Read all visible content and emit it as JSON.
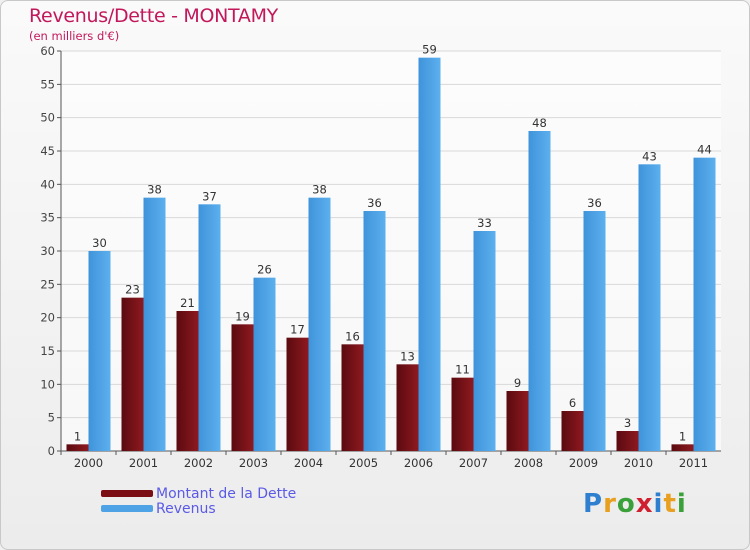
{
  "chart_data": {
    "type": "bar",
    "title": "Revenus/Dette - MONTAMY",
    "subtitle": "(en milliers d'€)",
    "xlabel": "",
    "ylabel": "",
    "ylim": [
      0,
      60
    ],
    "yticks": [
      0,
      5,
      10,
      15,
      20,
      25,
      30,
      35,
      40,
      45,
      50,
      55,
      60
    ],
    "grid": true,
    "legend_position": "bottom-left",
    "categories": [
      "2000",
      "2001",
      "2002",
      "2003",
      "2004",
      "2005",
      "2006",
      "2007",
      "2008",
      "2009",
      "2010",
      "2011"
    ],
    "series": [
      {
        "name": "Montant de la Dette",
        "color": "#7a0e14",
        "values": [
          1,
          23,
          21,
          19,
          17,
          16,
          13,
          11,
          9,
          6,
          3,
          1
        ]
      },
      {
        "name": "Revenus",
        "color": "#4ea3e6",
        "values": [
          30,
          38,
          37,
          26,
          38,
          36,
          59,
          33,
          48,
          36,
          43,
          44
        ]
      }
    ]
  },
  "legend": {
    "items": [
      "Montant de la Dette",
      "Revenus"
    ]
  },
  "logo": {
    "letters": [
      "P",
      "r",
      "o",
      "x",
      "i",
      "t",
      "i"
    ],
    "colors": [
      "#2f7fd0",
      "#e8a020",
      "#3aa03a",
      "#d02030",
      "#2f7fd0",
      "#e8a020",
      "#3aa03a"
    ]
  }
}
